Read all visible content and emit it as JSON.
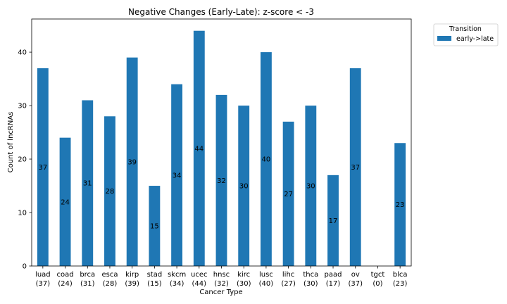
{
  "chart_data": {
    "type": "bar",
    "title": "Negative Changes (Early-Late): z-score < -3",
    "xlabel": "Cancer Type",
    "ylabel": "Count of lncRNAs",
    "ylim": [
      0,
      46.2
    ],
    "yticks": [
      0,
      10,
      20,
      30,
      40
    ],
    "categories": [
      "luad",
      "coad",
      "brca",
      "esca",
      "kirp",
      "stad",
      "skcm",
      "ucec",
      "hnsc",
      "kirc",
      "lusc",
      "lihc",
      "thca",
      "paad",
      "ov",
      "tgct",
      "blca"
    ],
    "category_sublabels": [
      "(37)",
      "(24)",
      "(31)",
      "(28)",
      "(39)",
      "(15)",
      "(34)",
      "(44)",
      "(32)",
      "(30)",
      "(40)",
      "(27)",
      "(30)",
      "(17)",
      "(37)",
      "(0)",
      "(23)"
    ],
    "series": [
      {
        "name": "early->late",
        "color": "#1f77b4",
        "values": [
          37,
          24,
          31,
          28,
          39,
          15,
          34,
          44,
          32,
          30,
          40,
          27,
          30,
          17,
          37,
          0,
          23
        ],
        "data_labels": [
          "37",
          "24",
          "31",
          "28",
          "39",
          "15",
          "34",
          "44",
          "32",
          "30",
          "40",
          "27",
          "30",
          "17",
          "37",
          "",
          "23"
        ]
      }
    ],
    "legend": {
      "title": "Transition",
      "placement": "outside-top-right"
    },
    "grid": false
  }
}
